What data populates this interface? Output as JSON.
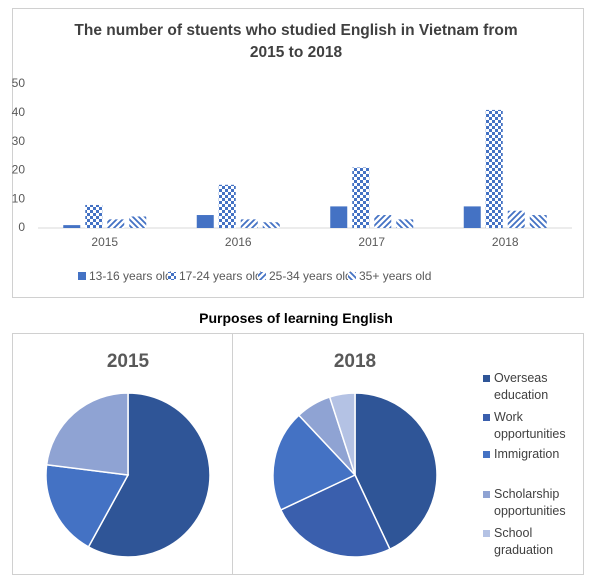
{
  "chart_data": [
    {
      "type": "bar",
      "title": "The number of stuents who studied English in Vietnam from 2015 to 2018",
      "categories": [
        "2015",
        "2016",
        "2017",
        "2018"
      ],
      "series": [
        {
          "name": "13-16 years old",
          "color": "#4472c4",
          "pattern": "solid",
          "values": [
            1,
            4.5,
            7.5,
            7.5
          ]
        },
        {
          "name": "17-24 years old",
          "color": "#4472c4",
          "pattern": "checker",
          "values": [
            8,
            15,
            21,
            41
          ]
        },
        {
          "name": "25-34 years old",
          "color": "#4472c4",
          "pattern": "diagonal",
          "values": [
            3,
            3,
            4.5,
            6
          ]
        },
        {
          "name": "35+ years old",
          "color": "#4472c4",
          "pattern": "diagonal-reverse",
          "values": [
            4,
            2,
            3,
            4.5
          ]
        }
      ],
      "ylim": [
        0,
        50
      ],
      "yticks": [
        0,
        10,
        20,
        30,
        40,
        50
      ],
      "grid": false,
      "legend": "bottom"
    },
    {
      "type": "pie",
      "title": "Purposes of learning English",
      "categories": [
        "Overseas education",
        "Work opportunities",
        "Immigration",
        "Scholarship opportunities",
        "School graduation"
      ],
      "colors": [
        "#2f5597",
        "#3a5fad",
        "#4472c4",
        "#8fa3d3",
        "#b4c2e4"
      ],
      "pies": [
        {
          "name": "2015",
          "values": [
            58,
            0,
            19,
            23,
            0
          ]
        },
        {
          "name": "2018",
          "values": [
            43,
            25,
            20,
            7,
            5
          ]
        }
      ],
      "legend": "right"
    }
  ]
}
